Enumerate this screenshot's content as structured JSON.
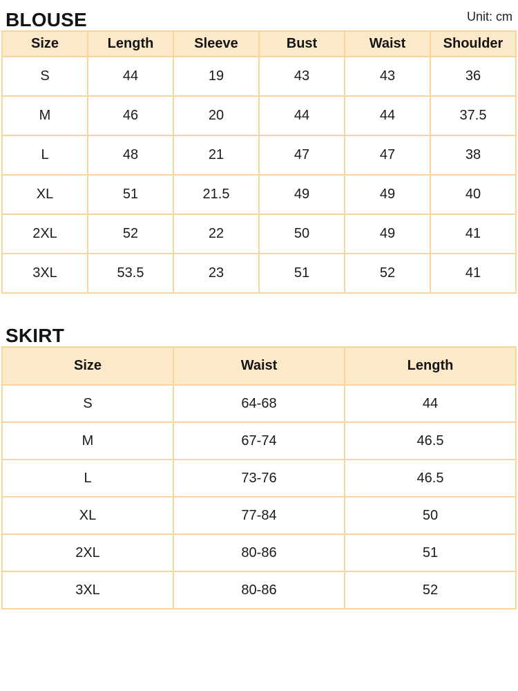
{
  "unit_label": "Unit: cm",
  "colors": {
    "table_border": "#FBD49C",
    "header_bg": "#FCE9CA",
    "text": "#1A1A1A",
    "row_bg": "#FFFFFF"
  },
  "sections": [
    {
      "title": "BLOUSE",
      "headers": [
        "Size",
        "Length",
        "Sleeve",
        "Bust",
        "Waist",
        "Shoulder"
      ],
      "rows": [
        [
          "S",
          "44",
          "19",
          "43",
          "43",
          "36"
        ],
        [
          "M",
          "46",
          "20",
          "44",
          "44",
          "37.5"
        ],
        [
          "L",
          "48",
          "21",
          "47",
          "47",
          "38"
        ],
        [
          "XL",
          "51",
          "21.5",
          "49",
          "49",
          "40"
        ],
        [
          "2XL",
          "52",
          "22",
          "50",
          "49",
          "41"
        ],
        [
          "3XL",
          "53.5",
          "23",
          "51",
          "52",
          "41"
        ]
      ]
    },
    {
      "title": "SKIRT",
      "headers": [
        "Size",
        "Waist",
        "Length"
      ],
      "rows": [
        [
          "S",
          "64-68",
          "44"
        ],
        [
          "M",
          "67-74",
          "46.5"
        ],
        [
          "L",
          "73-76",
          "46.5"
        ],
        [
          "XL",
          "77-84",
          "50"
        ],
        [
          "2XL",
          "80-86",
          "51"
        ],
        [
          "3XL",
          "80-86",
          "52"
        ]
      ]
    }
  ]
}
